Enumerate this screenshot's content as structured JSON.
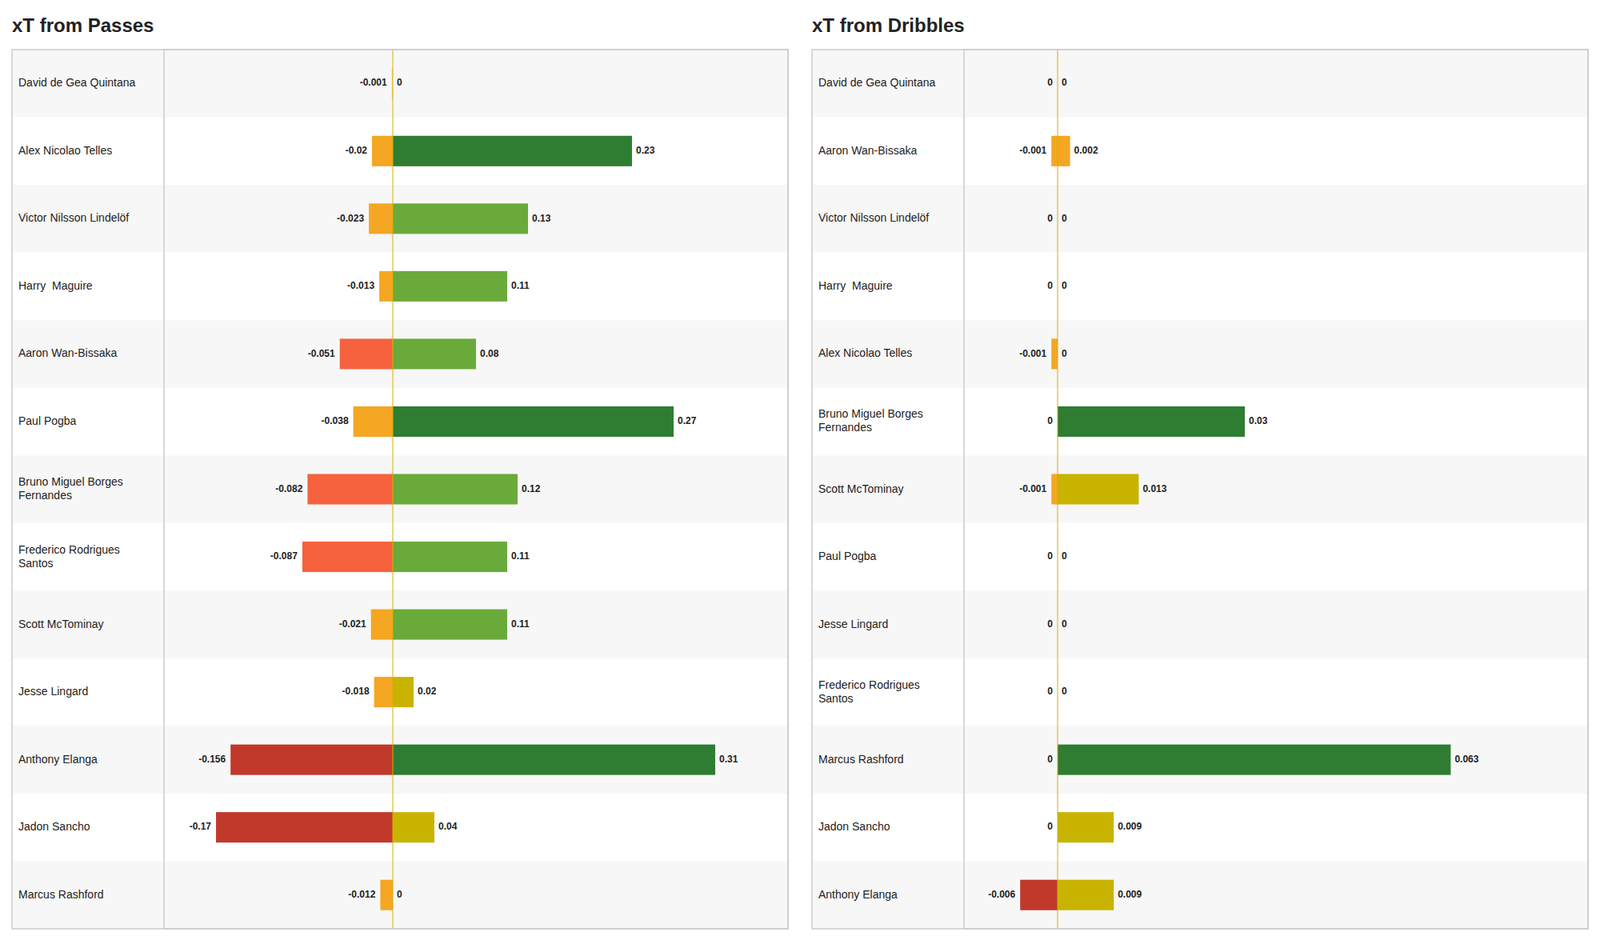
{
  "chart_data": [
    {
      "type": "bar",
      "orientation": "horizontal",
      "stacked": true,
      "title": "xT from Passes",
      "categories": [
        "David de Gea Quintana",
        "Alex Nicolao Telles",
        "Victor Nilsson Lindelöf",
        "Harry  Maguire",
        "Aaron Wan-Bissaka",
        "Paul Pogba",
        "Bruno Miguel Borges\nFernandes",
        "Frederico Rodrigues\nSantos",
        "Scott McTominay",
        "Jesse Lingard",
        "Anthony Elanga",
        "Jadon Sancho",
        "Marcus Rashford"
      ],
      "series": [
        {
          "values": [
            -0.001,
            -0.02,
            -0.023,
            -0.013,
            -0.051,
            -0.038,
            -0.082,
            -0.087,
            -0.021,
            -0.018,
            -0.156,
            -0.17,
            -0.012
          ],
          "colors": [
            "#f5d76e",
            "#f5a623",
            "#f5a623",
            "#f5a623",
            "#f5623d",
            "#f5a623",
            "#f5623d",
            "#f5623d",
            "#f5a623",
            "#f5a623",
            "#c0392b",
            "#c0392b",
            "#f5a623"
          ]
        },
        {
          "values": [
            0,
            0.23,
            0.13,
            0.11,
            0.08,
            0.27,
            0.12,
            0.11,
            0.11,
            0.02,
            0.31,
            0.04,
            0
          ],
          "colors": [
            "#f5d76e",
            "#2e7d32",
            "#6aaa3a",
            "#6aaa3a",
            "#6aaa3a",
            "#2e7d32",
            "#6aaa3a",
            "#6aaa3a",
            "#6aaa3a",
            "#c8b400",
            "#2e7d32",
            "#c8b400",
            "#f5d76e"
          ]
        }
      ],
      "xlim": [
        -0.22,
        0.38
      ],
      "grid": false,
      "data_labels": true,
      "tick_labels": false
    },
    {
      "type": "bar",
      "orientation": "horizontal",
      "stacked": true,
      "title": "xT from Dribbles",
      "categories": [
        "David de Gea Quintana",
        "Aaron Wan-Bissaka",
        "Victor Nilsson Lindelöf",
        "Harry  Maguire",
        "Alex Nicolao Telles",
        "Bruno Miguel Borges\nFernandes",
        "Scott McTominay",
        "Paul Pogba",
        "Jesse Lingard",
        "Frederico Rodrigues\nSantos",
        "Marcus Rashford",
        "Jadon Sancho",
        "Anthony Elanga"
      ],
      "series": [
        {
          "values": [
            0,
            -0.001,
            0,
            0,
            -0.001,
            0,
            -0.001,
            0,
            0,
            0,
            0,
            0,
            -0.006
          ],
          "colors": [
            "#f5d76e",
            "#f5a623",
            "#f5d76e",
            "#f5d76e",
            "#f5a623",
            "#f5d76e",
            "#f5a623",
            "#f5d76e",
            "#f5d76e",
            "#f5d76e",
            "#f5d76e",
            "#f5d76e",
            "#c0392b"
          ]
        },
        {
          "values": [
            0,
            0.002,
            0,
            0,
            0,
            0.03,
            0.013,
            0,
            0,
            0,
            0.063,
            0.009,
            0.009
          ],
          "colors": [
            "#f5d76e",
            "#f5a623",
            "#f5d76e",
            "#f5d76e",
            "#f5d76e",
            "#2e7d32",
            "#c8b400",
            "#f5d76e",
            "#f5d76e",
            "#f5d76e",
            "#2e7d32",
            "#c8b400",
            "#c8b400"
          ]
        }
      ],
      "xlim": [
        -0.015,
        0.085
      ],
      "grid": false,
      "data_labels": true,
      "tick_labels": false
    }
  ]
}
